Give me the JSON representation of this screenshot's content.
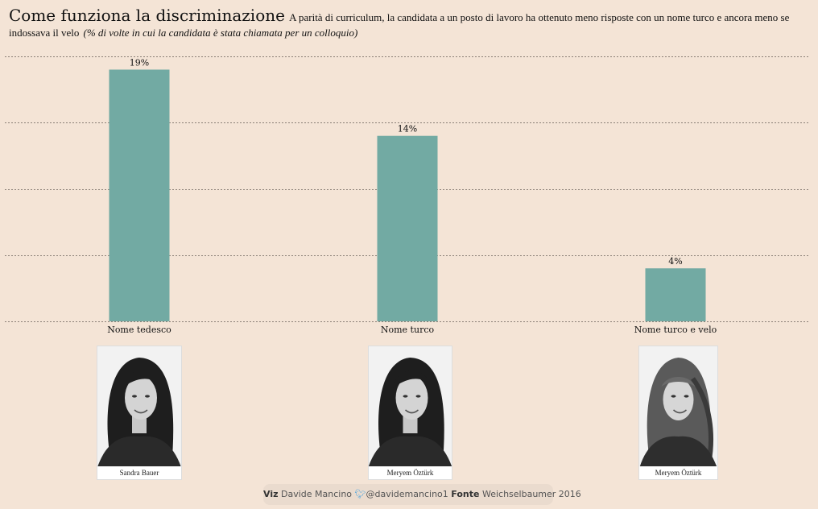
{
  "header": {
    "title": "Come funziona la discriminazione",
    "subtitle": "A parità di curriculum, la candidata a un posto di lavoro ha ottenuto meno risposte con un nome turco e ancora meno se indossava il velo",
    "note": "(% di volte in cui la candidata è stata chiamata per un colloquio)"
  },
  "chart_data": {
    "type": "bar",
    "categories": [
      "Nome tedesco",
      "Nome turco",
      "Nome turco e velo"
    ],
    "values": [
      19,
      14,
      4
    ],
    "data_labels": [
      "19%",
      "14%",
      "4%"
    ],
    "ylim": [
      0,
      20
    ],
    "grid": true,
    "bar_color": "#72aaa3"
  },
  "photos": [
    {
      "caption": "Sandra Bauer",
      "veil": false
    },
    {
      "caption": "Meryem Öztürk",
      "veil": false
    },
    {
      "caption": "Meryem Öztürk",
      "veil": true
    }
  ],
  "footer": {
    "viz_label": "Viz",
    "viz_name": "Davide Mancino",
    "twitter_icon": "twitter-bird-icon",
    "handle": "@davidemancino1",
    "source_label": "Fonte",
    "source": "Weichselbaumer 2016"
  }
}
